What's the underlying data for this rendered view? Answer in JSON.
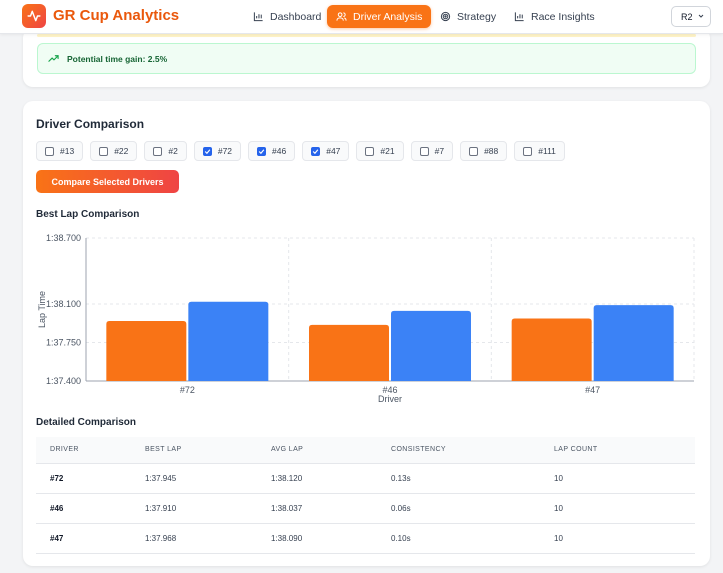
{
  "app": {
    "title": "GR Cup Analytics"
  },
  "nav": [
    {
      "label": "Dashboard",
      "icon": "bar-chart-icon",
      "active": false
    },
    {
      "label": "Driver Analysis",
      "icon": "users-icon",
      "active": true
    },
    {
      "label": "Strategy",
      "icon": "target-icon",
      "active": false
    },
    {
      "label": "Race Insights",
      "icon": "bar-chart-icon",
      "active": false
    }
  ],
  "race_select": {
    "value": "R2"
  },
  "gain": {
    "text": "Potential time gain: 2.5%"
  },
  "comparison": {
    "title": "Driver Comparison",
    "drivers": [
      {
        "label": "#13",
        "checked": false
      },
      {
        "label": "#22",
        "checked": false
      },
      {
        "label": "#2",
        "checked": false
      },
      {
        "label": "#72",
        "checked": true
      },
      {
        "label": "#46",
        "checked": true
      },
      {
        "label": "#47",
        "checked": true
      },
      {
        "label": "#21",
        "checked": false
      },
      {
        "label": "#7",
        "checked": false
      },
      {
        "label": "#88",
        "checked": false
      },
      {
        "label": "#111",
        "checked": false
      }
    ],
    "compare_button": "Compare Selected Drivers"
  },
  "chart_data": {
    "type": "bar",
    "title": "Best Lap Comparison",
    "xlabel": "Driver",
    "ylabel": "Lap Time",
    "categories": [
      "#72",
      "#46",
      "#47"
    ],
    "series": [
      {
        "values": [
          97.945,
          97.91,
          97.968
        ],
        "color": "#f97316"
      },
      {
        "values": [
          98.12,
          98.037,
          98.09
        ],
        "color": "#3b82f6"
      }
    ],
    "ylim": [
      97.4,
      98.7
    ],
    "yticks": [
      {
        "value": 97.4,
        "label": "1:37.400"
      },
      {
        "value": 97.75,
        "label": "1:37.750"
      },
      {
        "value": 98.1,
        "label": "1:38.100"
      },
      {
        "value": 98.7,
        "label": "1:38.700"
      }
    ],
    "grid": true
  },
  "details": {
    "title": "Detailed Comparison",
    "columns": [
      "DRIVER",
      "BEST LAP",
      "AVG LAP",
      "CONSISTENCY",
      "LAP COUNT"
    ],
    "rows": [
      [
        "#72",
        "1:37.945",
        "1:38.120",
        "0.13s",
        "10"
      ],
      [
        "#46",
        "1:37.910",
        "1:38.037",
        "0.06s",
        "10"
      ],
      [
        "#47",
        "1:37.968",
        "1:38.090",
        "0.10s",
        "10"
      ]
    ]
  }
}
